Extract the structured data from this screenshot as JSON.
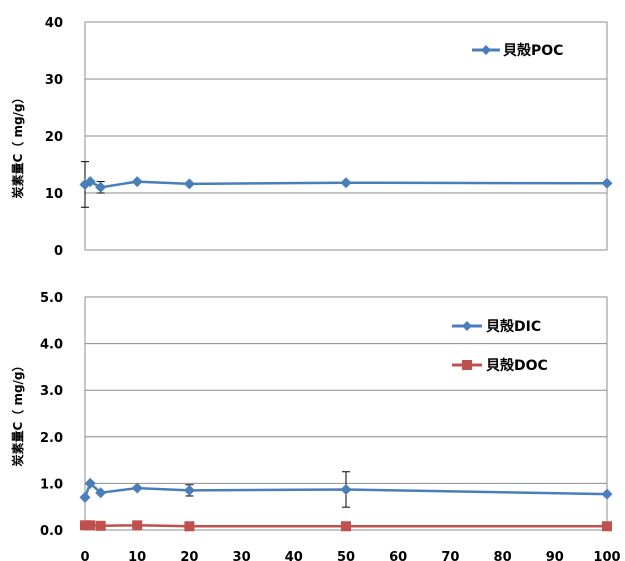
{
  "chart_data": [
    {
      "type": "line",
      "ylabel": "炭素量C（ mg/g）",
      "ylim": [
        0,
        40
      ],
      "yticks": [
        "0",
        "10",
        "20",
        "30",
        "40"
      ],
      "xlim": [
        0,
        100
      ],
      "grid": true,
      "legend_position": "top-right",
      "series": [
        {
          "name": "貝殻POC",
          "color": "#4a7ebb",
          "marker": "diamond",
          "x": [
            0,
            1,
            3,
            10,
            20,
            50,
            100
          ],
          "y": [
            11.5,
            12.0,
            11.0,
            12.0,
            11.6,
            11.8,
            11.7
          ],
          "error": [
            4.0,
            null,
            1.0,
            null,
            null,
            null,
            null
          ]
        }
      ]
    },
    {
      "type": "line",
      "ylabel": "炭素量C（ mg/g）",
      "ylim": [
        0,
        5
      ],
      "yticks": [
        "0.0",
        "1.0",
        "2.0",
        "3.0",
        "4.0",
        "5.0"
      ],
      "xlim": [
        0,
        100
      ],
      "xticks": [
        "0",
        "10",
        "20",
        "30",
        "40",
        "50",
        "60",
        "70",
        "80",
        "90",
        "100"
      ],
      "grid": true,
      "legend_position": "top-right",
      "series": [
        {
          "name": "貝殻DIC",
          "color": "#4a7ebb",
          "marker": "diamond",
          "x": [
            0,
            1,
            3,
            10,
            20,
            50,
            100
          ],
          "y": [
            0.7,
            1.0,
            0.8,
            0.9,
            0.85,
            0.87,
            0.77
          ],
          "error": [
            null,
            null,
            null,
            null,
            0.12,
            0.38,
            null
          ]
        },
        {
          "name": "貝殻DOC",
          "color": "#c0504d",
          "marker": "square",
          "x": [
            0,
            1,
            3,
            10,
            20,
            50,
            100
          ],
          "y": [
            0.1,
            0.1,
            0.09,
            0.1,
            0.08,
            0.08,
            0.08
          ],
          "error": [
            null,
            null,
            null,
            null,
            null,
            null,
            null
          ]
        }
      ]
    }
  ]
}
